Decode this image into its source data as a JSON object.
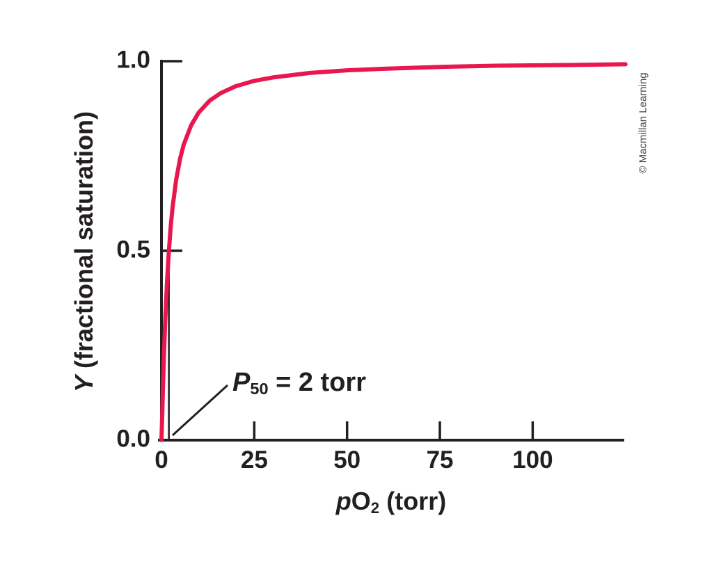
{
  "figure": {
    "copyright": "© Macmillan Learning"
  },
  "chart_data": {
    "type": "line",
    "xlabel": {
      "em": "p",
      "base": "O",
      "sub": "2",
      "rest": " (torr)"
    },
    "ylabel": {
      "em": "Y",
      "rest": " (fractional saturation)"
    },
    "xlim": [
      0,
      125
    ],
    "ylim": [
      0,
      1
    ],
    "grid": false,
    "xticks": [
      {
        "value": 0,
        "label": "0"
      },
      {
        "value": 25,
        "label": "25"
      },
      {
        "value": 50,
        "label": "50"
      },
      {
        "value": 75,
        "label": "75"
      },
      {
        "value": 100,
        "label": "100"
      }
    ],
    "yticks": [
      {
        "value": 1.0,
        "label": "1.0"
      },
      {
        "value": 0.5,
        "label": "0.5"
      },
      {
        "value": 0.0,
        "label": "0.0"
      }
    ],
    "annotation": {
      "em": "P",
      "sub": "50",
      "rest": " = 2 torr",
      "p50_torr": 2,
      "y_at_p50": 0.5
    },
    "series": [
      {
        "name": "fractional saturation curve",
        "color": "#e8184f",
        "points": [
          [
            0,
            0
          ],
          [
            0.2,
            0.066
          ],
          [
            0.4,
            0.136
          ],
          [
            0.7,
            0.23
          ],
          [
            1,
            0.311
          ],
          [
            1.5,
            0.418
          ],
          [
            2,
            0.5
          ],
          [
            2.5,
            0.564
          ],
          [
            3,
            0.615
          ],
          [
            4,
            0.689
          ],
          [
            5,
            0.742
          ],
          [
            6,
            0.78
          ],
          [
            8,
            0.831
          ],
          [
            10,
            0.864
          ],
          [
            13,
            0.896
          ],
          [
            16,
            0.916
          ],
          [
            20,
            0.934
          ],
          [
            25,
            0.948
          ],
          [
            30,
            0.957
          ],
          [
            40,
            0.969
          ],
          [
            50,
            0.976
          ],
          [
            60,
            0.98
          ],
          [
            75,
            0.985
          ],
          [
            90,
            0.988
          ],
          [
            110,
            0.99
          ],
          [
            125,
            0.992
          ]
        ]
      }
    ]
  }
}
